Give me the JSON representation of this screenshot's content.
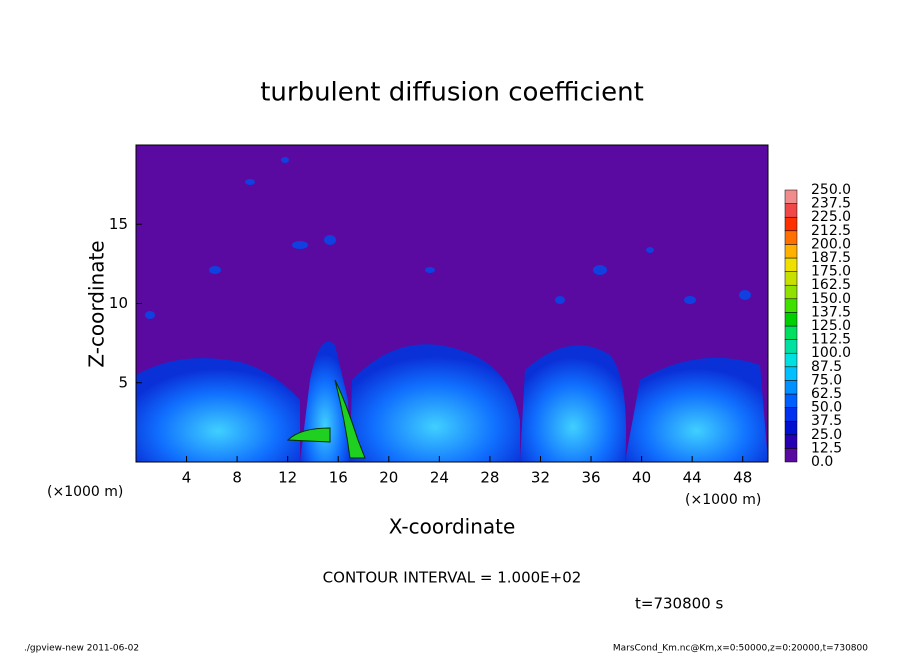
{
  "chart_data": {
    "type": "contour",
    "title": "turbulent diffusion coefficient",
    "xlabel": "X-coordinate",
    "ylabel": "Z-coordinate",
    "xunit": "(×1000 m)",
    "xunit_right": "(×1000 m)",
    "xlim": [
      0,
      50
    ],
    "xticks": [
      4,
      8,
      12,
      16,
      20,
      24,
      28,
      32,
      36,
      40,
      44,
      48
    ],
    "ylim": [
      0,
      20
    ],
    "yticks": [
      5,
      10,
      15
    ],
    "contour_note": "CONTOUR INTERVAL = 1.000E+02",
    "time_label": "t=730800 s",
    "footer_left": "./gpview-new   2011-06-02",
    "footer_right": "MarsCond_Km.nc@Km,x=0:50000,z=0:20000,t=730800",
    "colorbar": {
      "levels": [
        {
          "value": 0,
          "label": "0.0"
        },
        12.5,
        {
          "value": 25,
          "label": "25.0"
        },
        37.5,
        {
          "value": 50,
          "label": "50.0"
        },
        62.5,
        {
          "value": 75,
          "label": "75.0"
        },
        87.5,
        {
          "value": 100,
          "label": "100.0"
        },
        112.5,
        {
          "value": 125,
          "label": "125.0"
        },
        137.5,
        {
          "value": 150,
          "label": "150.0"
        },
        162.5,
        {
          "value": 175,
          "label": "175.0"
        },
        187.5,
        {
          "value": 200,
          "label": "200.0"
        },
        212.5,
        {
          "value": 225,
          "label": "225.0"
        },
        237.5,
        {
          "value": 250,
          "label": "250.0"
        }
      ],
      "colors": [
        "#5a0aa0",
        "#2800b4",
        "#0010d0",
        "#0030f0",
        "#0060ff",
        "#0090ff",
        "#00c0ff",
        "#00e0e0",
        "#00e0a0",
        "#00e060",
        "#00d000",
        "#40e000",
        "#90e000",
        "#c8e000",
        "#f0e000",
        "#ffb000",
        "#ff7000",
        "#ff3000",
        "#f04848",
        "#f08c8c"
      ]
    }
  }
}
